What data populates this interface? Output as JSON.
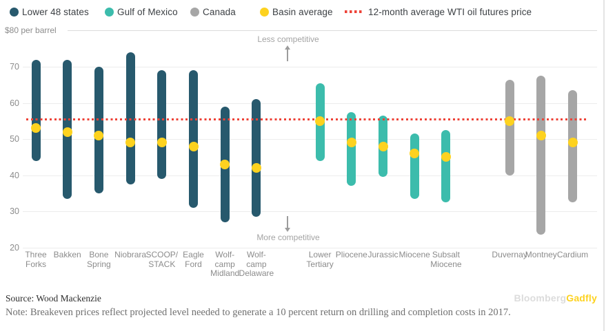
{
  "axis": {
    "unit_label": "$80 per barrel"
  },
  "footer": {
    "source": "Source: Wood Mackenzie",
    "note": "Note: Breakeven prices reflect projected level needed to generate a 10 percent return on drilling and completion costs in 2017.",
    "brand_light": "Bloomberg",
    "brand_accent": "Gadfly"
  },
  "chart_data": {
    "type": "range-dot",
    "title": "",
    "ylabel": "$ per barrel",
    "y_axis": {
      "unit_label": "$80 per barrel",
      "max": 80,
      "min": 20,
      "ticks": [
        70,
        60,
        50,
        40,
        30,
        20
      ],
      "grid": true
    },
    "reference_line": {
      "label": "12-month average WTI oil futures price",
      "value": 55.4,
      "style": "dotted",
      "color": "#ee4237"
    },
    "average_marker": {
      "label": "Basin average",
      "color": "#fdd21f"
    },
    "annotations": [
      {
        "text": "Less competitive",
        "direction": "up"
      },
      {
        "text": "More competitive",
        "direction": "down"
      }
    ],
    "series": [
      {
        "name": "Lower 48 states",
        "color": "#27596d",
        "items": [
          {
            "label": "Three Forks",
            "label_lines": [
              "Three",
              "Forks"
            ],
            "low": 44,
            "high": 72,
            "average": 53
          },
          {
            "label": "Bakken",
            "label_lines": [
              "Bakken"
            ],
            "low": 33.5,
            "high": 72,
            "average": 52
          },
          {
            "label": "Bone Spring",
            "label_lines": [
              "Bone",
              "Spring"
            ],
            "low": 35,
            "high": 70,
            "average": 51
          },
          {
            "label": "Niobrara",
            "label_lines": [
              "Niobrara"
            ],
            "low": 37.5,
            "high": 74,
            "average": 49
          },
          {
            "label": "SCOOP/STACK",
            "label_lines": [
              "SCOOP/",
              "STACK"
            ],
            "low": 39,
            "high": 69,
            "average": 49
          },
          {
            "label": "Eagle Ford",
            "label_lines": [
              "Eagle",
              "Ford"
            ],
            "low": 31,
            "high": 69,
            "average": 48
          },
          {
            "label": "Wolfcamp Midland",
            "label_lines": [
              "Wolf-",
              "camp",
              "Midland"
            ],
            "low": 27,
            "high": 59,
            "average": 43
          },
          {
            "label": "Wolfcamp Delaware",
            "label_lines": [
              "Wolf-",
              "camp",
              "Delaware"
            ],
            "low": 28.5,
            "high": 61,
            "average": 42
          }
        ]
      },
      {
        "name": "Gulf of Mexico",
        "color": "#3cbcac",
        "items": [
          {
            "label": "Lower Tertiary",
            "label_lines": [
              "Lower",
              "Tertiary"
            ],
            "low": 44,
            "high": 65.5,
            "average": 55
          },
          {
            "label": "Pliocene",
            "label_lines": [
              "Pliocene"
            ],
            "low": 37,
            "high": 57.5,
            "average": 49
          },
          {
            "label": "Jurassic",
            "label_lines": [
              "Jurassic"
            ],
            "low": 39.5,
            "high": 56.5,
            "average": 48
          },
          {
            "label": "Miocene",
            "label_lines": [
              "Miocene"
            ],
            "low": 33.5,
            "high": 51.5,
            "average": 46
          },
          {
            "label": "Subsalt Miocene",
            "label_lines": [
              "Subsalt",
              "Miocene"
            ],
            "low": 32.5,
            "high": 52.5,
            "average": 45
          }
        ]
      },
      {
        "name": "Canada",
        "color": "#a6a6a6",
        "items": [
          {
            "label": "Duvernay",
            "label_lines": [
              "Duvernay"
            ],
            "low": 40,
            "high": 66.5,
            "average": 55
          },
          {
            "label": "Montney",
            "label_lines": [
              "Montney"
            ],
            "low": 23.5,
            "high": 67.5,
            "average": 51
          },
          {
            "label": "Cardium",
            "label_lines": [
              "Cardium"
            ],
            "low": 32.5,
            "high": 63.5,
            "average": 49
          }
        ]
      }
    ]
  }
}
